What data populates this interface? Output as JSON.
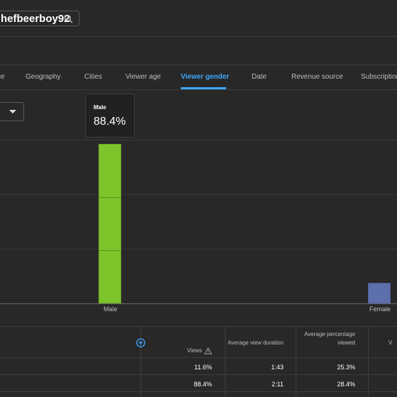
{
  "header": {
    "channel_name": "hefbeerboy92"
  },
  "tabs": [
    {
      "label": "ce"
    },
    {
      "label": "Geography"
    },
    {
      "label": "Cities"
    },
    {
      "label": "Viewer age"
    },
    {
      "label": "Viewer gender",
      "active": true
    },
    {
      "label": "Date"
    },
    {
      "label": "Revenue source"
    },
    {
      "label": "Subscription"
    }
  ],
  "tooltip": {
    "label": "Male",
    "value": "88.4%"
  },
  "chart_data": {
    "type": "bar",
    "categories": [
      "Male",
      "Female"
    ],
    "values": [
      88.4,
      11.6
    ],
    "ylim": [
      0,
      88.4
    ],
    "colors": [
      "#7dc42b",
      "#5e6fae"
    ],
    "grid": true
  },
  "table": {
    "columns": {
      "views": "Views",
      "avg_view_duration": "Average view duration",
      "avg_pct_viewed": "Average percentage viewed"
    },
    "rows": [
      {
        "views": "11.6%",
        "avg_view_duration": "1:43",
        "avg_pct_viewed": "25.3%"
      },
      {
        "views": "88.4%",
        "avg_view_duration": "2:11",
        "avg_pct_viewed": "28.4%"
      }
    ]
  },
  "colors": {
    "accent": "#3ea6ff",
    "background": "#282828"
  }
}
